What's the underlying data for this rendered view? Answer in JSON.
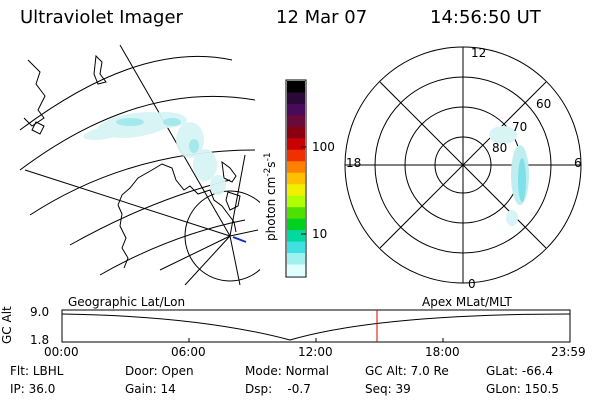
{
  "header": {
    "instrument": "Ultraviolet Imager",
    "date": "12 Mar 07",
    "time": "14:56:50 UT"
  },
  "colorbar": {
    "unit_label": "photon cm",
    "unit_exp1": "-2",
    "unit_mid": "s",
    "unit_exp2": "-1",
    "ticks": [
      "100",
      "10"
    ],
    "colors": [
      "#000000",
      "#2a0838",
      "#4a0a5a",
      "#6a0a3a",
      "#8a0010",
      "#c80000",
      "#f03000",
      "#ff8000",
      "#ffc000",
      "#f0f000",
      "#b0ff00",
      "#50e000",
      "#00d020",
      "#00d8a0",
      "#40e0e0",
      "#a0f0f0",
      "#e0ffff"
    ]
  },
  "polar_plot": {
    "labels": [
      "12",
      "18",
      "6",
      "0",
      "60",
      "70",
      "80"
    ]
  },
  "timeline": {
    "axis_label": "GC Alt",
    "y_top": "9.0",
    "y_bottom": "1.8",
    "left_title": "Geographic Lat/Lon",
    "right_title": "Apex MLat/MLT",
    "time_ticks": [
      "00:00",
      "06:00",
      "12:00",
      "18:00",
      "23:59"
    ],
    "marker_color": "#e00000"
  },
  "footer": {
    "row1": [
      {
        "k": "Flt:",
        "v": "LBHL"
      },
      {
        "k": "Door:",
        "v": "Open"
      },
      {
        "k": "Mode:",
        "v": "Normal"
      },
      {
        "k": "GC Alt:",
        "v": "7.0 Re"
      },
      {
        "k": "GLat:",
        "v": "-66.4"
      }
    ],
    "row2": [
      {
        "k": "IP:",
        "v": "36.0"
      },
      {
        "k": "Gain:",
        "v": "14"
      },
      {
        "k": "Dsp:",
        "v": "-0.7"
      },
      {
        "k": "Seq:",
        "v": "39"
      },
      {
        "k": "GLon:",
        "v": "150.5"
      }
    ]
  }
}
